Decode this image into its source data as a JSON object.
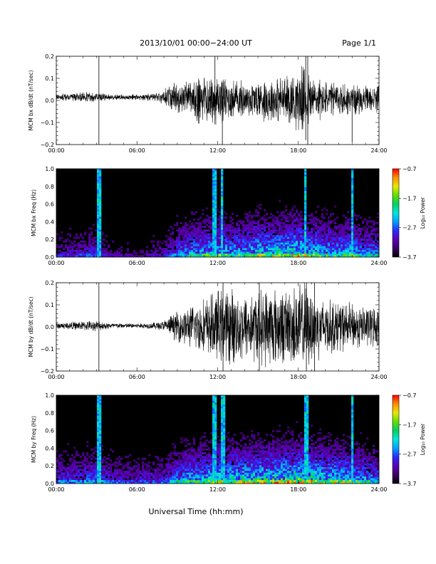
{
  "header": {
    "title": "2013/10/01   00:00−24:00 UT",
    "page": "Page 1/1"
  },
  "xaxis_title": "Universal Time (hh:mm)",
  "colors": {
    "background": "#ffffff",
    "trace": "#000000",
    "spectrogram_floor": "#000000"
  },
  "colormap": [
    "#000000",
    "#3c0068",
    "#5a00b4",
    "#2a2aff",
    "#00a0ff",
    "#00e6dc",
    "#00d060",
    "#60e000",
    "#e8e800",
    "#ff9000",
    "#ff0000"
  ],
  "chart_data": [
    {
      "type": "line",
      "panel": "bx-dbdt",
      "ylabel": "MCM bx dB/dt (nT/sec)",
      "xlim": [
        0,
        24
      ],
      "ylim": [
        -0.2,
        0.2
      ],
      "xticks": [
        "00:00",
        "06:00",
        "12:00",
        "18:00",
        "24:00"
      ],
      "yticks": [
        "−0.2",
        "−0.1",
        "0.0",
        "0.1",
        "0.2"
      ],
      "envelope": {
        "x_hours": [
          0,
          1,
          2,
          3,
          4,
          5,
          6,
          7,
          8,
          8.5,
          9,
          10,
          10.5,
          11,
          12,
          13,
          14,
          15,
          16,
          17,
          18,
          18.5,
          19,
          20,
          21,
          22,
          23,
          24
        ],
        "amplitude": [
          0.012,
          0.014,
          0.018,
          0.02,
          0.012,
          0.01,
          0.012,
          0.014,
          0.025,
          0.05,
          0.06,
          0.07,
          0.09,
          0.1,
          0.1,
          0.08,
          0.07,
          0.08,
          0.09,
          0.09,
          0.12,
          0.13,
          0.1,
          0.07,
          0.07,
          0.06,
          0.05,
          0.05
        ],
        "offset": 0.015
      },
      "spikes": [
        {
          "x": 3.17,
          "y0": -0.21,
          "y1": 0.21
        },
        {
          "x": 11.8,
          "y0": -0.05,
          "y1": 0.2
        },
        {
          "x": 12.35,
          "y0": -0.21,
          "y1": 0.08
        },
        {
          "x": 18.55,
          "y0": -0.18,
          "y1": 0.21
        },
        {
          "x": 18.7,
          "y0": -0.21,
          "y1": 0.2
        },
        {
          "x": 22.0,
          "y0": -0.19,
          "y1": 0.05
        }
      ]
    },
    {
      "type": "heatmap",
      "panel": "bx-spectrogram",
      "ylabel": "MCM bx Freq (Hz)",
      "colorbar_label": "Log₁₀ Power",
      "colorbar_ticks": [
        "−0.7",
        "−1.7",
        "−2.7",
        "−3.7"
      ],
      "clim": [
        -3.7,
        -0.7
      ],
      "xlim": [
        0,
        24
      ],
      "ylim": [
        0,
        1.0
      ],
      "xticks": [
        "00:00",
        "06:00",
        "12:00",
        "18:00",
        "24:00"
      ],
      "yticks": [
        "0.0",
        "0.2",
        "0.4",
        "0.6",
        "0.8",
        "1.0"
      ],
      "activity": {
        "x_hours": [
          0,
          2,
          3,
          4,
          6,
          8,
          9,
          10,
          11,
          12,
          13,
          14,
          15,
          16,
          17,
          18,
          19,
          20,
          21,
          22,
          23,
          24
        ],
        "level": [
          0.25,
          0.3,
          0.35,
          0.2,
          0.15,
          0.25,
          0.45,
          0.55,
          0.6,
          0.65,
          0.6,
          0.6,
          0.7,
          0.7,
          0.75,
          0.8,
          0.65,
          0.6,
          0.6,
          0.6,
          0.5,
          0.5
        ]
      },
      "vertical_bursts": [
        3.17,
        11.8,
        12.35,
        18.55,
        22.0
      ]
    },
    {
      "type": "line",
      "panel": "by-dbdt",
      "ylabel": "MCM by dB/dt (nT/sec)",
      "xlim": [
        0,
        24
      ],
      "ylim": [
        -0.2,
        0.2
      ],
      "xticks": [
        "00:00",
        "06:00",
        "12:00",
        "18:00",
        "24:00"
      ],
      "yticks": [
        "−0.2",
        "−0.1",
        "0.0",
        "0.1",
        "0.2"
      ],
      "envelope": {
        "x_hours": [
          0,
          1,
          2,
          3,
          4,
          5,
          6,
          7,
          8,
          8.5,
          9,
          10,
          11,
          12,
          13,
          14,
          15,
          16,
          17,
          18,
          18.5,
          19,
          20,
          21,
          22,
          23,
          24
        ],
        "amplitude": [
          0.012,
          0.015,
          0.018,
          0.02,
          0.012,
          0.01,
          0.01,
          0.012,
          0.02,
          0.04,
          0.06,
          0.08,
          0.11,
          0.14,
          0.15,
          0.13,
          0.14,
          0.16,
          0.14,
          0.17,
          0.17,
          0.14,
          0.11,
          0.1,
          0.09,
          0.08,
          0.08
        ],
        "offset": 0.005
      },
      "spikes": [
        {
          "x": 3.17,
          "y0": -0.21,
          "y1": 0.21
        },
        {
          "x": 12.4,
          "y0": -0.21,
          "y1": 0.21
        },
        {
          "x": 15.1,
          "y0": -0.21,
          "y1": 0.21
        },
        {
          "x": 18.6,
          "y0": -0.21,
          "y1": 0.21
        },
        {
          "x": 19.2,
          "y0": -0.21,
          "y1": 0.2
        }
      ]
    },
    {
      "type": "heatmap",
      "panel": "by-spectrogram",
      "ylabel": "MCM by Freq (Hz)",
      "colorbar_label": "Log₁₀ Power",
      "colorbar_ticks": [
        "−0.7",
        "−1.7",
        "−2.7",
        "−3.7"
      ],
      "clim": [
        -3.7,
        -0.7
      ],
      "xlim": [
        0,
        24
      ],
      "ylim": [
        0,
        1.0
      ],
      "xticks": [
        "00:00",
        "06:00",
        "12:00",
        "18:00",
        "24:00"
      ],
      "yticks": [
        "0.0",
        "0.2",
        "0.4",
        "0.6",
        "0.8",
        "1.0"
      ],
      "activity": {
        "x_hours": [
          0,
          2,
          3,
          4,
          6,
          8,
          9,
          10,
          11,
          12,
          13,
          14,
          15,
          16,
          17,
          18,
          19,
          20,
          21,
          22,
          23,
          24
        ],
        "level": [
          0.4,
          0.4,
          0.45,
          0.35,
          0.3,
          0.35,
          0.5,
          0.6,
          0.65,
          0.7,
          0.7,
          0.72,
          0.75,
          0.75,
          0.8,
          0.85,
          0.75,
          0.7,
          0.7,
          0.65,
          0.55,
          0.5
        ]
      },
      "vertical_bursts": [
        3.17,
        11.8,
        12.4,
        18.6,
        22.0
      ]
    }
  ]
}
